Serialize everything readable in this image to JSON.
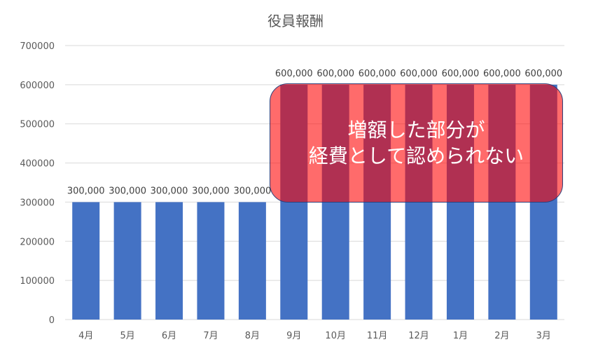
{
  "chart_data": {
    "type": "bar",
    "title": "役員報酬",
    "categories": [
      "4月",
      "5月",
      "6月",
      "7月",
      "8月",
      "9月",
      "10月",
      "11月",
      "12月",
      "1月",
      "2月",
      "3月"
    ],
    "values": [
      300000,
      300000,
      300000,
      300000,
      300000,
      600000,
      600000,
      600000,
      600000,
      600000,
      600000,
      600000
    ],
    "data_labels": [
      "300,000",
      "300,000",
      "300,000",
      "300,000",
      "300,000",
      "600,000",
      "600,000",
      "600,000",
      "600,000",
      "600,000",
      "600,000",
      "600,000"
    ],
    "ylim": [
      0,
      700000
    ],
    "yticks": [
      "0",
      "100000",
      "200000",
      "300000",
      "400000",
      "500000",
      "600000",
      "700000"
    ],
    "grid": true,
    "bar_color": "#4472c4",
    "annotation": {
      "line1": "増額した部分が",
      "line2": "経費として認められない",
      "color": "#ff0000"
    }
  }
}
